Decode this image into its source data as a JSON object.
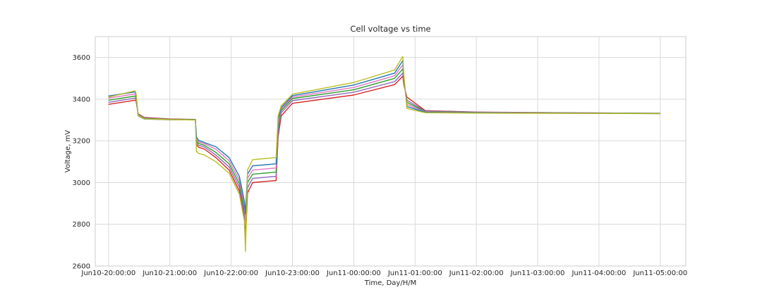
{
  "chart_data": {
    "type": "line",
    "title": "Cell voltage vs time",
    "xlabel": "Time, Day/H/M",
    "ylabel": "Voltage, mV",
    "xlim": [
      "Jun10-19:47:00",
      "Jun11-05:25:00"
    ],
    "ylim": [
      2600,
      3700
    ],
    "x_ticks": [
      "Jun10-20:00:00",
      "Jun10-21:00:00",
      "Jun10-22:00:00",
      "Jun10-23:00:00",
      "Jun11-00:00:00",
      "Jun11-01:00:00",
      "Jun11-02:00:00",
      "Jun11-03:00:00",
      "Jun11-04:00:00",
      "Jun11-05:00:00"
    ],
    "y_ticks": [
      2600,
      2800,
      3000,
      3200,
      3400,
      3600
    ],
    "grid": true,
    "legend": "none",
    "x": [
      "Jun10-20:00:00",
      "Jun10-20:26:00",
      "Jun10-20:27:00",
      "Jun10-20:29:00",
      "Jun10-20:35:00",
      "Jun10-21:00:00",
      "Jun10-21:25:00",
      "Jun10-21:26:00",
      "Jun10-21:28:00",
      "Jun10-21:34:00",
      "Jun10-21:45:00",
      "Jun10-21:58:00",
      "Jun10-22:08:00",
      "Jun10-22:13:00",
      "Jun10-22:14:00",
      "Jun10-22:16:00",
      "Jun10-22:21:00",
      "Jun10-22:44:00",
      "Jun10-22:46:00",
      "Jun10-22:49:00",
      "Jun10-23:00:00",
      "Jun11-00:00:00",
      "Jun11-00:40:00",
      "Jun11-00:48:00",
      "Jun11-00:49:00",
      "Jun11-00:52:00",
      "Jun11-01:10:00",
      "Jun11-02:00:00",
      "Jun11-05:00:00"
    ],
    "series": [
      {
        "values": [
          3375,
          3395,
          3390,
          3330,
          3312,
          3305,
          3303,
          3182,
          3170,
          3160,
          3120,
          3060,
          2960,
          2830,
          2720,
          2950,
          3000,
          3010,
          3220,
          3320,
          3380,
          3420,
          3470,
          3510,
          3470,
          3410,
          3345,
          3338,
          3332
        ]
      },
      {
        "values": [
          3385,
          3405,
          3398,
          3328,
          3310,
          3304,
          3302,
          3192,
          3180,
          3170,
          3132,
          3075,
          2978,
          2850,
          2745,
          2975,
          3020,
          3030,
          3240,
          3335,
          3393,
          3433,
          3484,
          3525,
          3480,
          3395,
          3343,
          3337,
          3332
        ]
      },
      {
        "values": [
          3395,
          3415,
          3405,
          3325,
          3308,
          3303,
          3302,
          3200,
          3188,
          3178,
          3145,
          3090,
          2995,
          2870,
          2770,
          3000,
          3040,
          3050,
          3260,
          3345,
          3403,
          3445,
          3500,
          3545,
          3490,
          3385,
          3341,
          3336,
          3332
        ]
      },
      {
        "values": [
          3405,
          3425,
          3413,
          3323,
          3306,
          3302,
          3301,
          3210,
          3196,
          3186,
          3160,
          3105,
          3012,
          2890,
          2800,
          3020,
          3060,
          3070,
          3280,
          3352,
          3410,
          3456,
          3512,
          3565,
          3500,
          3375,
          3339,
          3335,
          3331
        ]
      },
      {
        "values": [
          3415,
          3435,
          3420,
          3320,
          3305,
          3301,
          3301,
          3218,
          3203,
          3192,
          3172,
          3120,
          3030,
          2910,
          2850,
          3040,
          3080,
          3090,
          3300,
          3360,
          3417,
          3468,
          3525,
          3585,
          3510,
          3365,
          3337,
          3334,
          3331
        ]
      },
      {
        "values": [
          3410,
          3440,
          3425,
          3321,
          3306,
          3302,
          3300,
          3150,
          3140,
          3132,
          3100,
          3045,
          2945,
          2815,
          2670,
          3060,
          3110,
          3120,
          3320,
          3368,
          3424,
          3480,
          3540,
          3605,
          3520,
          3355,
          3335,
          3333,
          3331
        ]
      }
    ],
    "colors": [
      "#d62728",
      "#9467bd",
      "#2ca02c",
      "#e377c2",
      "#1f77b4",
      "#bcbd22"
    ]
  }
}
